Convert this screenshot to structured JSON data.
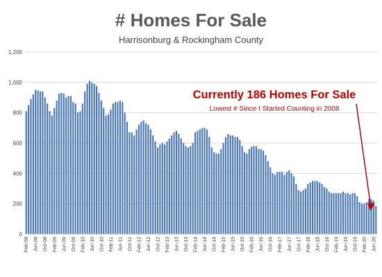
{
  "chart_data": {
    "type": "bar",
    "title": "# Homes For Sale",
    "subtitle": "Harrisonburg & Rockingham County",
    "annotation": {
      "headline": "Currently 186 Homes For Sale",
      "subline": "Lowest # Since I Started Counting in 2008"
    },
    "ylim": [
      0,
      1200
    ],
    "yticks": [
      0,
      200,
      400,
      600,
      800,
      1000,
      1200
    ],
    "ytick_labels": [
      "0",
      "200",
      "400",
      "600",
      "800",
      "1,000",
      "1,200"
    ],
    "grid": true,
    "bar_color": "#4472c4",
    "title_color": "#595959",
    "annotation_color": "#c00000",
    "xtick_labels": [
      {
        "index": 0,
        "label": "Feb-08"
      },
      {
        "index": 4,
        "label": "Jun-08"
      },
      {
        "index": 8,
        "label": "Oct-08"
      },
      {
        "index": 12,
        "label": "Feb-09"
      },
      {
        "index": 16,
        "label": "Jun-09"
      },
      {
        "index": 20,
        "label": "Oct-09"
      },
      {
        "index": 24,
        "label": "Feb-10"
      },
      {
        "index": 28,
        "label": "Jun-10"
      },
      {
        "index": 32,
        "label": "Oct-10"
      },
      {
        "index": 36,
        "label": "Feb-11"
      },
      {
        "index": 40,
        "label": "Jun-11"
      },
      {
        "index": 44,
        "label": "Oct-11"
      },
      {
        "index": 48,
        "label": "Feb-12"
      },
      {
        "index": 52,
        "label": "Jun-12"
      },
      {
        "index": 56,
        "label": "Oct-12"
      },
      {
        "index": 60,
        "label": "Feb-13"
      },
      {
        "index": 64,
        "label": "Jun-13"
      },
      {
        "index": 68,
        "label": "Oct-13"
      },
      {
        "index": 72,
        "label": "Feb-14"
      },
      {
        "index": 76,
        "label": "Jun-14"
      },
      {
        "index": 80,
        "label": "Oct-14"
      },
      {
        "index": 84,
        "label": "Feb-15"
      },
      {
        "index": 88,
        "label": "Jun-15"
      },
      {
        "index": 92,
        "label": "Oct-15"
      },
      {
        "index": 96,
        "label": "Feb-16"
      },
      {
        "index": 100,
        "label": "Jun-16"
      },
      {
        "index": 104,
        "label": "Oct-16"
      },
      {
        "index": 108,
        "label": "Feb-17"
      },
      {
        "index": 112,
        "label": "Jun-17"
      },
      {
        "index": 116,
        "label": "Oct-17"
      },
      {
        "index": 120,
        "label": "Feb-18"
      },
      {
        "index": 124,
        "label": "Jun-18"
      },
      {
        "index": 128,
        "label": "Oct-18"
      },
      {
        "index": 132,
        "label": "Feb-19"
      },
      {
        "index": 136,
        "label": "Jun-19"
      },
      {
        "index": 140,
        "label": "Oct-19"
      },
      {
        "index": 144,
        "label": "Feb-20"
      },
      {
        "index": 148,
        "label": "Jun-20"
      }
    ],
    "values": [
      810,
      850,
      890,
      920,
      950,
      945,
      940,
      940,
      900,
      860,
      810,
      780,
      830,
      880,
      925,
      930,
      925,
      900,
      910,
      910,
      870,
      860,
      800,
      810,
      860,
      940,
      990,
      1010,
      1000,
      990,
      975,
      930,
      880,
      830,
      780,
      790,
      820,
      860,
      870,
      870,
      880,
      870,
      800,
      740,
      670,
      670,
      650,
      690,
      720,
      740,
      750,
      730,
      720,
      690,
      650,
      610,
      570,
      590,
      600,
      590,
      610,
      630,
      650,
      670,
      680,
      660,
      630,
      600,
      580,
      570,
      580,
      600,
      670,
      680,
      690,
      700,
      700,
      690,
      640,
      570,
      540,
      530,
      530,
      560,
      600,
      640,
      660,
      650,
      650,
      640,
      640,
      620,
      580,
      540,
      530,
      560,
      575,
      580,
      580,
      560,
      560,
      550,
      520,
      480,
      440,
      400,
      390,
      410,
      410,
      410,
      390,
      410,
      420,
      400,
      380,
      330,
      290,
      280,
      290,
      300,
      330,
      340,
      350,
      350,
      350,
      340,
      330,
      310,
      300,
      280,
      270,
      270,
      270,
      270,
      270,
      280,
      270,
      270,
      260,
      270,
      270,
      250,
      210,
      200,
      200,
      210,
      230,
      230,
      220,
      186
    ]
  }
}
